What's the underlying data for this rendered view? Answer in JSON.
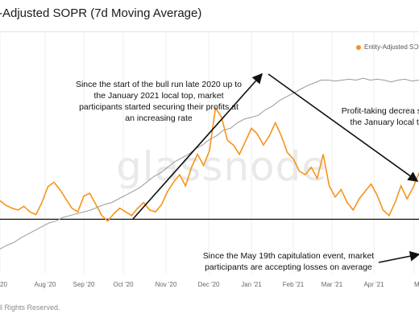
{
  "chart_data": {
    "type": "line",
    "title": "-Adjusted SOPR (7d Moving Average)",
    "x_ticks": [
      "20",
      "Aug '20",
      "Sep '20",
      "Oct '20",
      "Nov '20",
      "Dec '20",
      "Jan '21",
      "Feb '21",
      "Mar '21",
      "Apr '21",
      "May"
    ],
    "series": [
      {
        "name": "Entity-Adjusted SOPR",
        "color": "#f7931a",
        "y_samples": [
          1.02,
          1.015,
          1.012,
          1.01,
          1.014,
          1.008,
          1.005,
          1.018,
          1.035,
          1.04,
          1.032,
          1.022,
          1.012,
          1.008,
          1.025,
          1.028,
          1.016,
          1.004,
          0.998,
          1.006,
          1.012,
          1.008,
          1.004,
          1.012,
          1.018,
          1.01,
          1.008,
          1.016,
          1.03,
          1.04,
          1.048,
          1.036,
          1.056,
          1.07,
          1.058,
          1.074,
          1.12,
          1.11,
          1.085,
          1.08,
          1.07,
          1.084,
          1.098,
          1.092,
          1.08,
          1.09,
          1.104,
          1.09,
          1.072,
          1.065,
          1.052,
          1.048,
          1.056,
          1.044,
          1.07,
          1.036,
          1.024,
          1.032,
          1.018,
          1.01,
          1.022,
          1.03,
          1.038,
          1.026,
          1.01,
          1.004,
          1.018,
          1.036,
          1.022,
          1.034,
          1.05
        ]
      },
      {
        "name": "",
        "color": "#9a9a9a",
        "y_samples": [
          0.968,
          0.972,
          0.975,
          0.98,
          0.984,
          0.988,
          0.992,
          0.996,
          0.998,
          1.002,
          1.004,
          1.006,
          1.008,
          1.01,
          1.013,
          1.016,
          1.018,
          1.022,
          1.026,
          1.03,
          1.034,
          1.04,
          1.046,
          1.05,
          1.056,
          1.062,
          1.066,
          1.07,
          1.076,
          1.08,
          1.086,
          1.09,
          1.096,
          1.098,
          1.104,
          1.108,
          1.11,
          1.112,
          1.118,
          1.122,
          1.128,
          1.132,
          1.136,
          1.14,
          1.144,
          1.147,
          1.15,
          1.15,
          1.149,
          1.15,
          1.151,
          1.15,
          1.152,
          1.15,
          1.151,
          1.15,
          1.148,
          1.15,
          1.151,
          1.149,
          1.15
        ]
      }
    ],
    "reference_line": 1.0,
    "y_range": [
      0.95,
      1.16
    ],
    "legend_position": "top-right",
    "annotations": [
      "Since the start of the bull run late 2020 up to the January 2021 local top, market participants started securing their profits at an increasing rate",
      "Profit-taking decrea since the January local top",
      "Since the May 19th capitulation event, market participants are accepting losses on average"
    ],
    "watermark": "glassnode",
    "footer": "ll Rights Reserved."
  }
}
